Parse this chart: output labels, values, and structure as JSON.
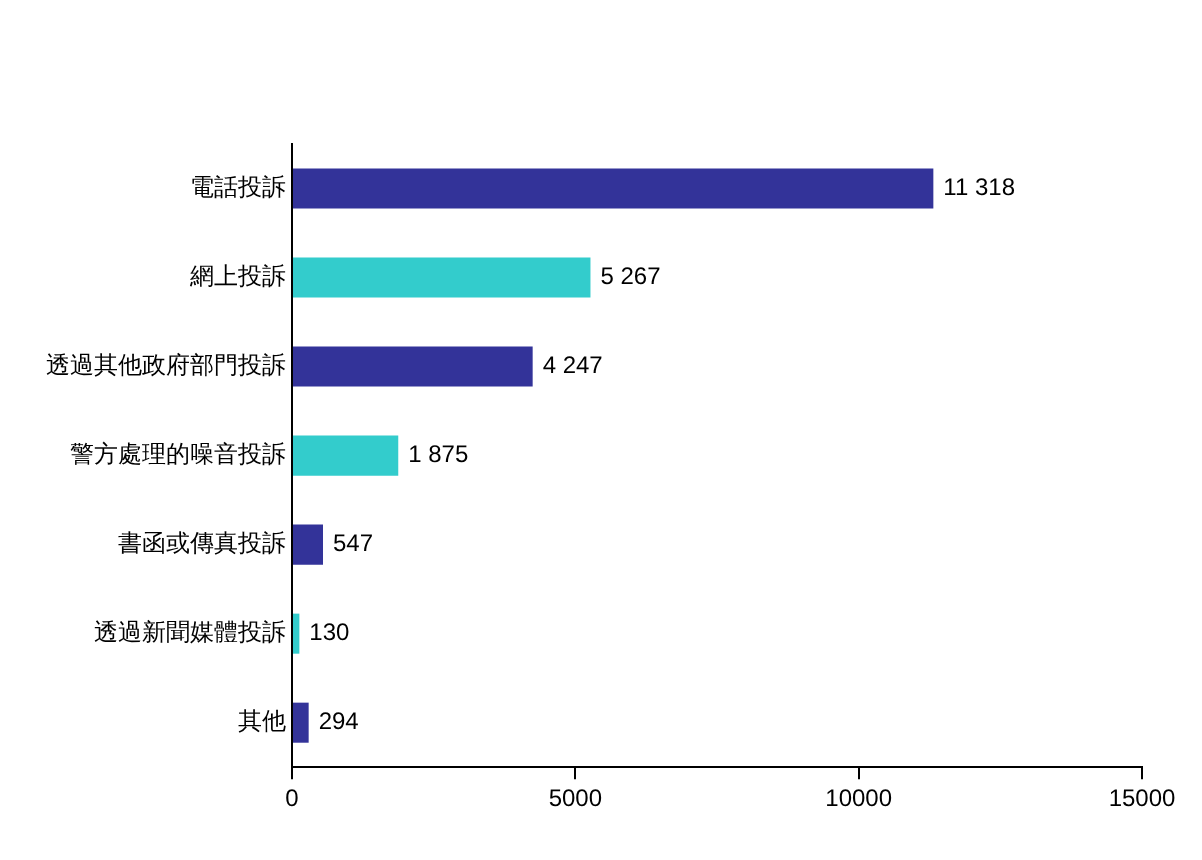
{
  "chart_data": {
    "type": "bar",
    "orientation": "horizontal",
    "categories": [
      "電話投訴",
      "網上投訴",
      "透過其他政府部門投訴",
      "警方處理的噪音投訴",
      "書函或傳真投訴",
      "透過新聞媒體投訴",
      "其他"
    ],
    "values": [
      11318,
      5267,
      4247,
      1875,
      547,
      130,
      294
    ],
    "colors": [
      "#333399",
      "#33cccc",
      "#333399",
      "#33cccc",
      "#333399",
      "#33cccc",
      "#333399"
    ],
    "value_labels": [
      "11 318",
      "5 267",
      "4 247",
      "1 875",
      "547",
      "130",
      "294"
    ],
    "xlim": [
      0,
      15000
    ],
    "xticks": [
      0,
      5000,
      10000,
      15000
    ],
    "grid": false,
    "legend": false
  }
}
